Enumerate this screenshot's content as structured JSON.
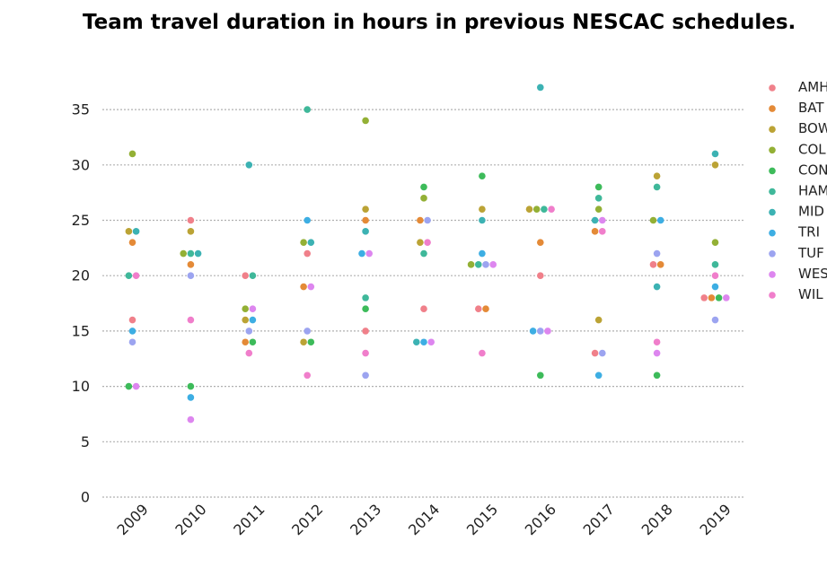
{
  "chart_data": {
    "type": "scatter",
    "title": "Team travel duration in hours in previous NESCAC schedules.",
    "xlabel": "",
    "ylabel": "",
    "categories": [
      "2009",
      "2010",
      "2011",
      "2012",
      "2013",
      "2014",
      "2015",
      "2016",
      "2017",
      "2018",
      "2019"
    ],
    "y_ticks": [
      0,
      5,
      10,
      15,
      20,
      25,
      30,
      35
    ],
    "ylim": [
      -0.5,
      37.5
    ],
    "grid": "horizontal dotted",
    "legend_position": "right",
    "series": [
      {
        "name": "AMH",
        "color": "#f0808a",
        "values": [
          16,
          25,
          20,
          22,
          15,
          17,
          17,
          20,
          13,
          21,
          18
        ]
      },
      {
        "name": "BAT",
        "color": "#e48a37",
        "values": [
          23,
          21,
          14,
          19,
          25,
          25,
          17,
          23,
          24,
          21,
          18
        ]
      },
      {
        "name": "BOW",
        "color": "#bba335",
        "values": [
          24,
          24,
          16,
          14,
          26,
          23,
          26,
          26,
          16,
          29,
          30
        ]
      },
      {
        "name": "COL",
        "color": "#93b035",
        "values": [
          31,
          22,
          17,
          23,
          34,
          27,
          21,
          26,
          26,
          25,
          23
        ]
      },
      {
        "name": "CON",
        "color": "#3dbb5a",
        "values": [
          10,
          10,
          14,
          14,
          17,
          28,
          29,
          11,
          28,
          11,
          18
        ]
      },
      {
        "name": "HAM",
        "color": "#3fb89a",
        "values": [
          20,
          22,
          20,
          35,
          18,
          22,
          21,
          26,
          27,
          28,
          21
        ]
      },
      {
        "name": "MID",
        "color": "#3cb2b3",
        "values": [
          24,
          22,
          30,
          23,
          24,
          14,
          25,
          37,
          25,
          19,
          31
        ]
      },
      {
        "name": "TRI",
        "color": "#3daee3",
        "values": [
          15,
          9,
          16,
          25,
          22,
          14,
          22,
          15,
          11,
          25,
          19
        ]
      },
      {
        "name": "TUF",
        "color": "#9ca4f0",
        "values": [
          14,
          20,
          15,
          15,
          11,
          25,
          21,
          15,
          13,
          22,
          16
        ]
      },
      {
        "name": "WES",
        "color": "#dd86ef",
        "values": [
          10,
          7,
          17,
          19,
          22,
          14,
          21,
          15,
          25,
          13,
          18
        ]
      },
      {
        "name": "WIL",
        "color": "#f07ecb",
        "values": [
          20,
          16,
          13,
          11,
          13,
          23,
          13,
          26,
          24,
          14,
          20
        ]
      }
    ]
  }
}
